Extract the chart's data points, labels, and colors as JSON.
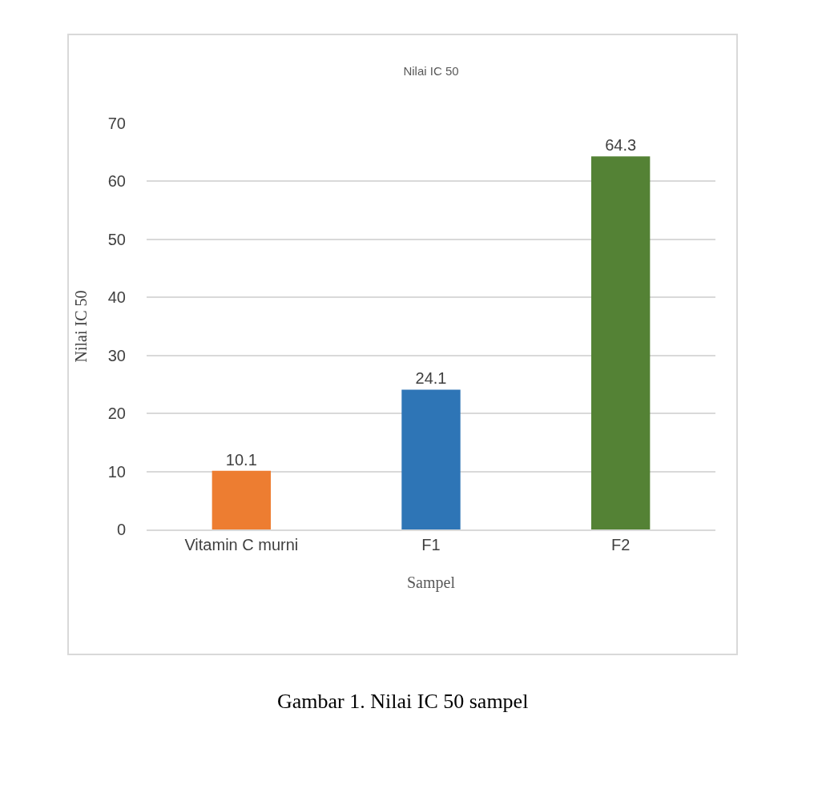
{
  "chart_data": {
    "type": "bar",
    "title": "Nilai IC 50",
    "xlabel": "Sampel",
    "ylabel": "Nilai IC 50",
    "categories": [
      "Vitamin C murni",
      "F1",
      "F2"
    ],
    "values": [
      10.1,
      24.1,
      64.3
    ],
    "colors": [
      "#ed7d31",
      "#2e75b6",
      "#548235"
    ],
    "ylim": [
      0,
      70
    ],
    "yticks": [
      0,
      10,
      20,
      30,
      40,
      50,
      60,
      70
    ],
    "grid": "y",
    "data_labels": true,
    "legend": false,
    "annotations": [
      "Gambar 1. Nilai IC 50 sampel"
    ]
  }
}
